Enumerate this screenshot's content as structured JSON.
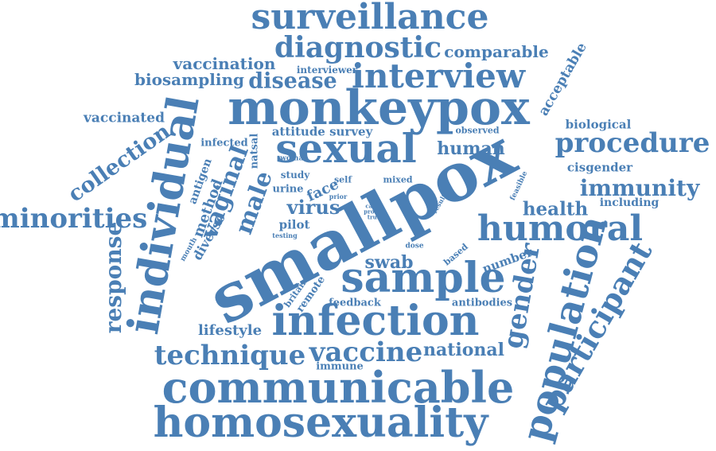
{
  "color": "#4a7fb5",
  "words": [
    "surveillance",
    "diagnostic",
    "comparable",
    "vaccination",
    "acceptable",
    "biosampling",
    "disease",
    "interviewer",
    "interview",
    "monkeypox",
    "vaccinated",
    "individual",
    "sexual",
    "procedure",
    "biological",
    "collection",
    "infected",
    "attitude survey",
    "observed",
    "human",
    "natsal",
    "woman",
    "antigen",
    "method",
    "vaginal",
    "male",
    "study",
    "face",
    "self",
    "mixed",
    "feasible",
    "cisgender",
    "immunity",
    "minorities",
    "urine",
    "prior",
    "virus",
    "case",
    "result",
    "smallpox",
    "diverse",
    "mouth",
    "pilot",
    "testing",
    "health",
    "including",
    "humoral",
    "response",
    "dose",
    "based",
    "swab",
    "number",
    "britain",
    "remote",
    "sample",
    "feedback",
    "antibodies",
    "gender",
    "population",
    "participant",
    "lifestyle",
    "infection",
    "technique",
    "vaccine",
    "national",
    "immune",
    "communicable",
    "homosexuality",
    "proc",
    "true"
  ]
}
